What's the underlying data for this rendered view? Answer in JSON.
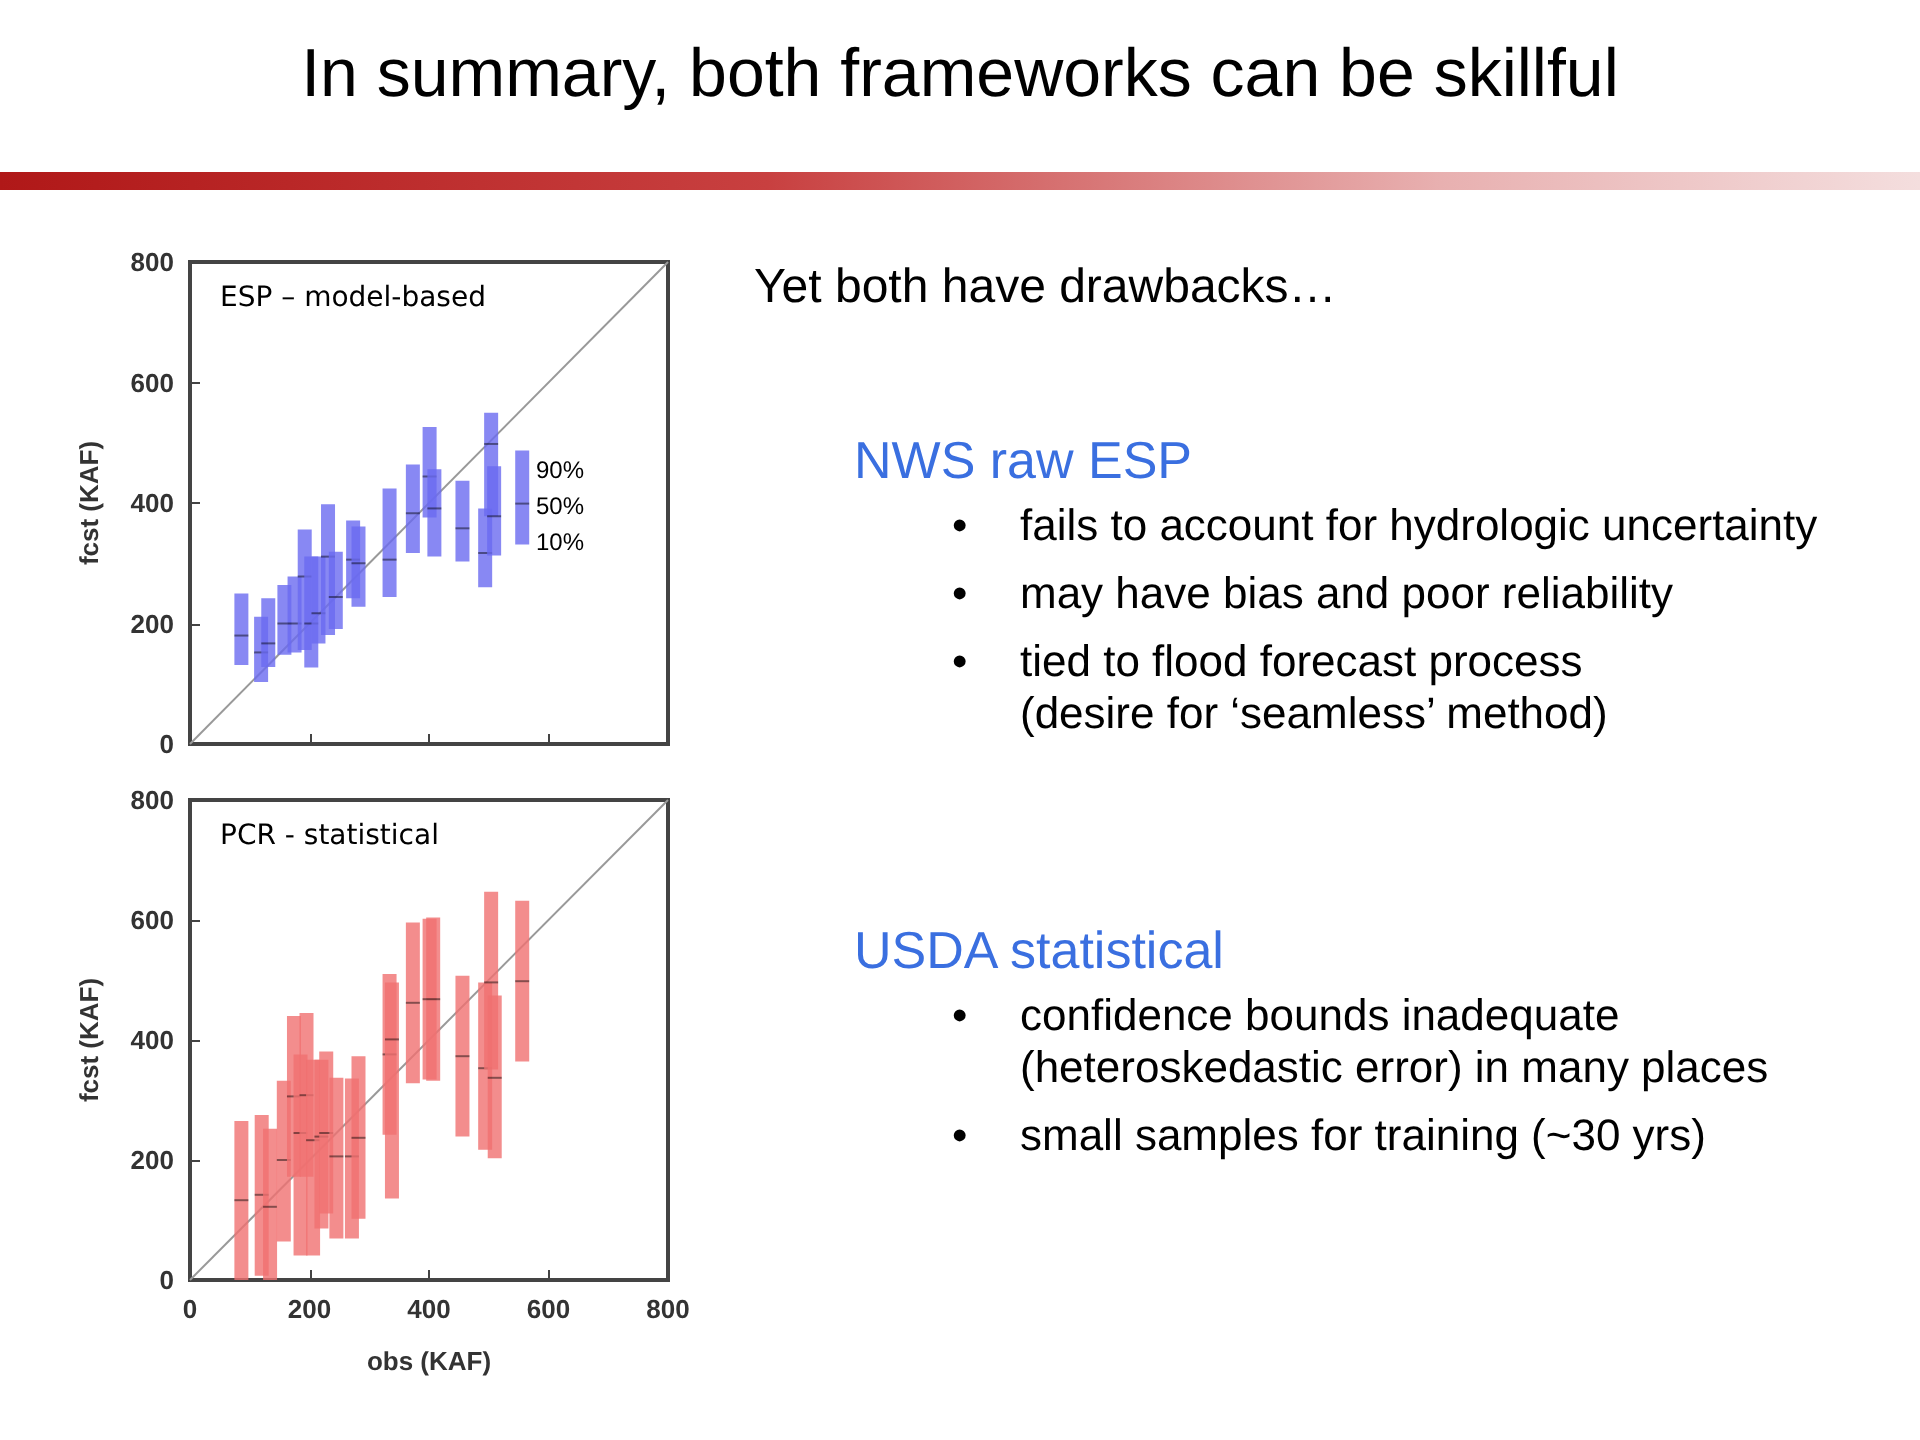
{
  "chart_data": [
    {
      "type": "other",
      "title": "In summary, both frameworks can be skillful"
    },
    {
      "type": "box",
      "title": "ESP – model-based",
      "ylabel": "fcst (KAF)",
      "xlim": [
        0,
        800
      ],
      "ylim": [
        0,
        800
      ],
      "xticks": [
        0,
        200,
        400,
        600,
        800
      ],
      "yticks": [
        0,
        200,
        400,
        600,
        800
      ],
      "tick_labels": "y",
      "annotations": [
        "90%",
        "50%",
        "10%"
      ],
      "series": [
        {
          "type": "line",
          "color": "#999999",
          "x": [
            0,
            800
          ],
          "values": [
            0,
            800
          ]
        },
        {
          "color": "#6a6af0",
          "x": [
            86,
            119,
            131,
            158,
            175,
            192,
            203,
            215,
            231,
            244,
            273,
            282,
            334,
            373,
            401,
            409,
            456,
            494,
            504,
            509,
            556
          ],
          "boxes": [
            {
              "low": 131,
              "q1": 131,
              "median": 180,
              "q3": 250,
              "high": 250
            },
            {
              "low": 103,
              "q1": 103,
              "median": 152,
              "q3": 211,
              "high": 211
            },
            {
              "low": 128,
              "q1": 128,
              "median": 167,
              "q3": 242,
              "high": 242
            },
            {
              "low": 148,
              "q1": 148,
              "median": 200,
              "q3": 264,
              "high": 264
            },
            {
              "low": 152,
              "q1": 152,
              "median": 200,
              "q3": 278,
              "high": 278
            },
            {
              "low": 156,
              "q1": 156,
              "median": 278,
              "q3": 356,
              "high": 356
            },
            {
              "low": 127,
              "q1": 127,
              "median": 200,
              "q3": 311,
              "high": 311
            },
            {
              "low": 167,
              "q1": 167,
              "median": 217,
              "q3": 311,
              "high": 311
            },
            {
              "low": 181,
              "q1": 181,
              "median": 311,
              "q3": 398,
              "high": 398
            },
            {
              "low": 191,
              "q1": 191,
              "median": 244,
              "q3": 319,
              "high": 319
            },
            {
              "low": 242,
              "q1": 242,
              "median": 306,
              "q3": 371,
              "high": 371
            },
            {
              "low": 228,
              "q1": 228,
              "median": 300,
              "q3": 361,
              "high": 361
            },
            {
              "low": 244,
              "q1": 244,
              "median": 306,
              "q3": 424,
              "high": 424
            },
            {
              "low": 317,
              "q1": 317,
              "median": 383,
              "q3": 464,
              "high": 464
            },
            {
              "low": 376,
              "q1": 376,
              "median": 444,
              "q3": 526,
              "high": 526
            },
            {
              "low": 311,
              "q1": 311,
              "median": 391,
              "q3": 456,
              "high": 456
            },
            {
              "low": 303,
              "q1": 303,
              "median": 358,
              "q3": 437,
              "high": 437
            },
            {
              "low": 260,
              "q1": 260,
              "median": 317,
              "q3": 391,
              "high": 391
            },
            {
              "low": 378,
              "q1": 378,
              "median": 498,
              "q3": 550,
              "high": 550
            },
            {
              "low": 313,
              "q1": 313,
              "median": 378,
              "q3": 461,
              "high": 461
            },
            {
              "low": 331,
              "q1": 331,
              "median": 399,
              "q3": 487,
              "high": 487
            }
          ]
        }
      ]
    },
    {
      "type": "box",
      "title": "PCR - statistical",
      "xlabel": "obs (KAF)",
      "ylabel": "fcst (KAF)",
      "xlim": [
        0,
        800
      ],
      "ylim": [
        0,
        800
      ],
      "xticks": [
        0,
        200,
        400,
        600,
        800
      ],
      "yticks": [
        0,
        200,
        400,
        600,
        800
      ],
      "series": [
        {
          "type": "line",
          "color": "#999999",
          "x": [
            0,
            800
          ],
          "values": [
            0,
            800
          ]
        },
        {
          "color": "#f07070",
          "x": [
            86,
            120,
            134,
            157,
            174,
            185,
            195,
            206,
            220,
            228,
            245,
            271,
            282,
            334,
            338,
            373,
            401,
            407,
            456,
            494,
            504,
            510,
            556
          ],
          "boxes": [
            {
              "low": 0,
              "q1": 0,
              "median": 133,
              "q3": 265,
              "high": 265
            },
            {
              "low": 7,
              "q1": 7,
              "median": 142,
              "q3": 275,
              "high": 275
            },
            {
              "low": 0,
              "q1": 0,
              "median": 122,
              "q3": 252,
              "high": 252
            },
            {
              "low": 64,
              "q1": 64,
              "median": 200,
              "q3": 332,
              "high": 332
            },
            {
              "low": 172,
              "q1": 172,
              "median": 306,
              "q3": 440,
              "high": 440
            },
            {
              "low": 41,
              "q1": 41,
              "median": 245,
              "q3": 376,
              "high": 376
            },
            {
              "low": 172,
              "q1": 172,
              "median": 308,
              "q3": 445,
              "high": 445
            },
            {
              "low": 41,
              "q1": 41,
              "median": 233,
              "q3": 367,
              "high": 367
            },
            {
              "low": 86,
              "q1": 86,
              "median": 239,
              "q3": 367,
              "high": 367
            },
            {
              "low": 111,
              "q1": 111,
              "median": 245,
              "q3": 381,
              "high": 381
            },
            {
              "low": 69,
              "q1": 69,
              "median": 206,
              "q3": 337,
              "high": 337
            },
            {
              "low": 69,
              "q1": 69,
              "median": 206,
              "q3": 336,
              "high": 336
            },
            {
              "low": 102,
              "q1": 102,
              "median": 237,
              "q3": 373,
              "high": 373
            },
            {
              "low": 242,
              "q1": 242,
              "median": 376,
              "q3": 510,
              "high": 510
            },
            {
              "low": 136,
              "q1": 136,
              "median": 401,
              "q3": 496,
              "high": 496
            },
            {
              "low": 328,
              "q1": 328,
              "median": 462,
              "q3": 596,
              "high": 596
            },
            {
              "low": 334,
              "q1": 334,
              "median": 468,
              "q3": 602,
              "high": 602
            },
            {
              "low": 332,
              "q1": 332,
              "median": 468,
              "q3": 604,
              "high": 604
            },
            {
              "low": 239,
              "q1": 239,
              "median": 373,
              "q3": 507,
              "high": 507
            },
            {
              "low": 217,
              "q1": 217,
              "median": 353,
              "q3": 496,
              "high": 496
            },
            {
              "low": 351,
              "q1": 351,
              "median": 496,
              "q3": 647,
              "high": 647
            },
            {
              "low": 203,
              "q1": 203,
              "median": 337,
              "q3": 474,
              "high": 474
            },
            {
              "low": 364,
              "q1": 364,
              "median": 498,
              "q3": 632,
              "high": 632
            }
          ]
        }
      ]
    },
    {
      "type": "other",
      "title": "Yet both have drawbacks…"
    },
    {
      "type": "other",
      "title": "NWS raw ESP",
      "annotations": [
        "•\tfails to account for hydrologic uncertainty",
        "•\tmay have bias and poor reliability",
        "•\ttied to flood forecast process\n(desire for ‘seamless’ method)"
      ]
    },
    {
      "type": "other",
      "title": "USDA statistical",
      "annotations": [
        "•\tconfidence bounds inadequate (heteroskedastic error) in many places",
        "•\tsmall samples for training (~30 yrs)"
      ]
    }
  ]
}
